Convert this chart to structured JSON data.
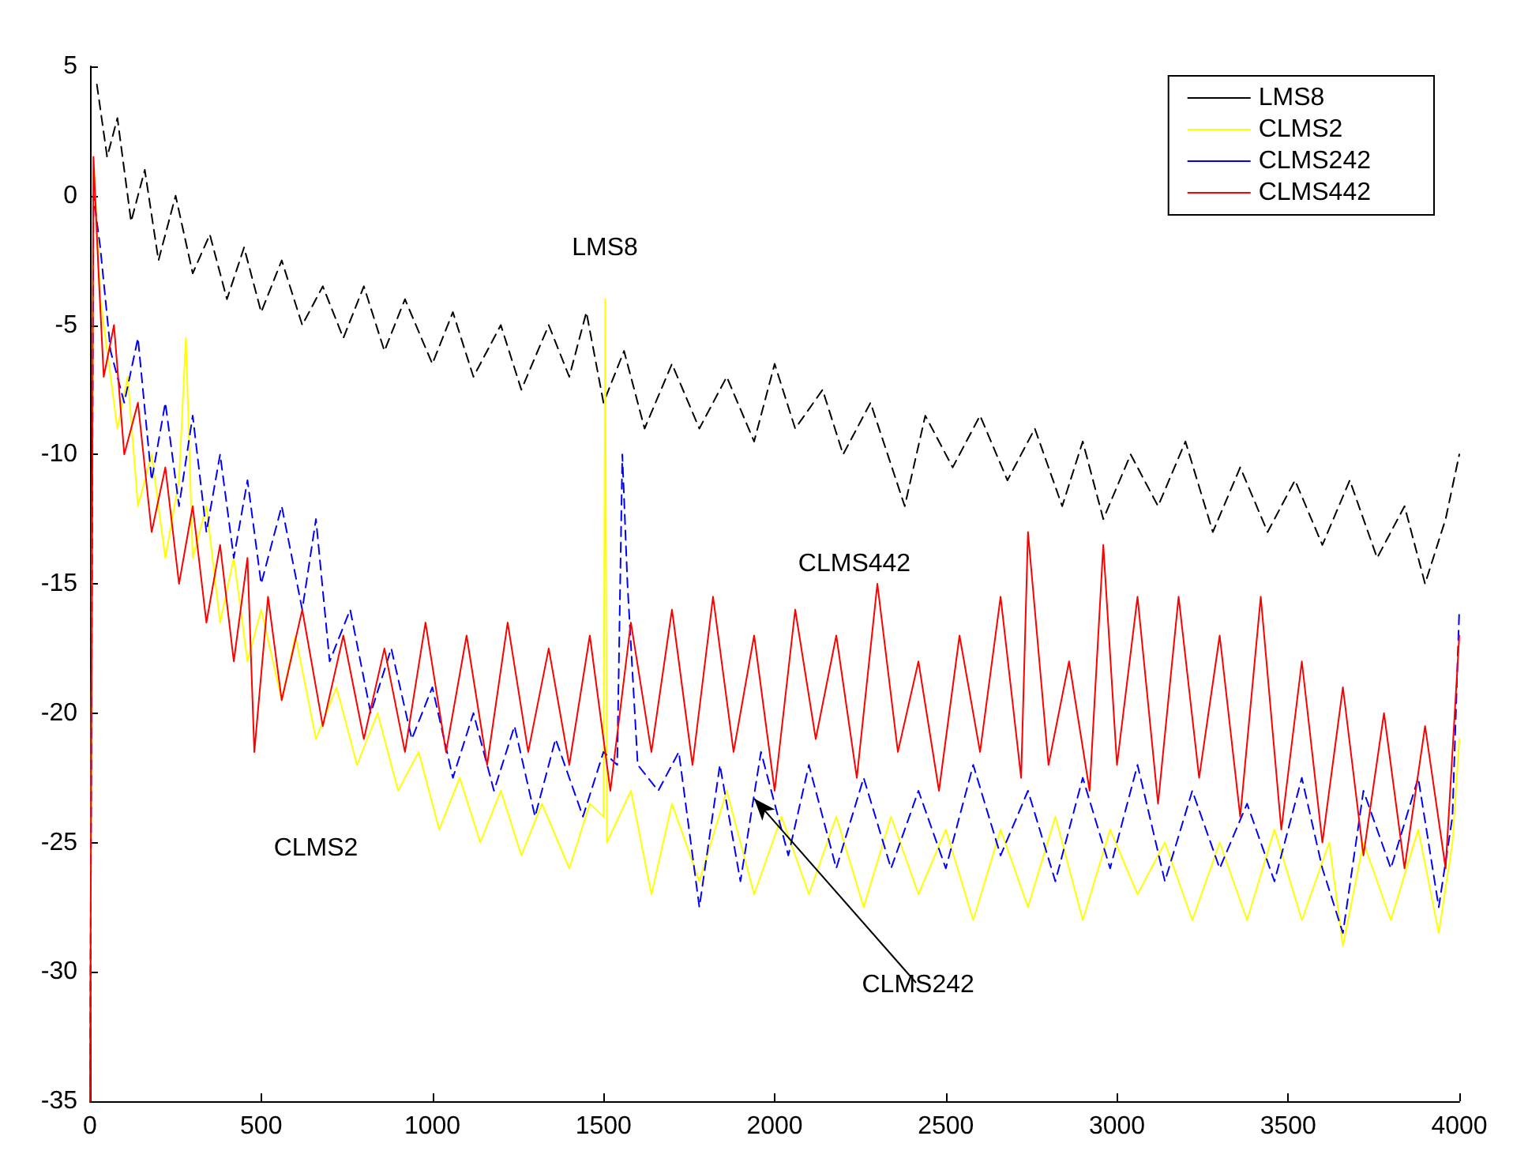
{
  "chart_data": {
    "type": "line",
    "xlim": [
      0,
      4000
    ],
    "xticks": [
      0,
      500,
      1000,
      1500,
      2000,
      2500,
      3000,
      3500,
      4000
    ],
    "ylim": [
      -35,
      5
    ],
    "yticks": [
      -35,
      -30,
      -25,
      -20,
      -15,
      -10,
      -5,
      0,
      5
    ],
    "grid": false,
    "legend": "top right",
    "marker": "none",
    "annotations": [
      "LMS8",
      "CLMS442",
      "CLMS2",
      {
        "text": "CLMS242",
        "x": 1940,
        "y": -23.3
      }
    ],
    "series": [
      {
        "name": "LMS8",
        "color": "#000000",
        "line_style": "dashed",
        "x": [
          20,
          50,
          80,
          120,
          160,
          200,
          250,
          300,
          350,
          400,
          450,
          500,
          560,
          620,
          680,
          740,
          800,
          860,
          920,
          1000,
          1060,
          1120,
          1200,
          1260,
          1340,
          1400,
          1450,
          1500,
          1560,
          1620,
          1700,
          1780,
          1860,
          1940,
          2000,
          2060,
          2140,
          2200,
          2280,
          2380,
          2440,
          2520,
          2600,
          2680,
          2760,
          2840,
          2900,
          2960,
          3040,
          3120,
          3200,
          3280,
          3360,
          3440,
          3520,
          3600,
          3680,
          3760,
          3840,
          3900,
          3960,
          4000
        ],
        "values": [
          4.3,
          1.5,
          3,
          -1,
          1,
          -2.5,
          0,
          -3,
          -1.5,
          -4,
          -2,
          -4.5,
          -2.5,
          -5,
          -3.5,
          -5.5,
          -3.5,
          -6,
          -4,
          -6.5,
          -4.5,
          -7,
          -5,
          -7.5,
          -5,
          -7,
          -4.5,
          -8,
          -6,
          -9,
          -6.5,
          -9,
          -7,
          -9.5,
          -6.5,
          -9,
          -7.5,
          -10,
          -8,
          -12,
          -8.5,
          -10.5,
          -8.5,
          -11,
          -9,
          -12,
          -9.5,
          -12.5,
          -10,
          -12,
          -9.5,
          -13,
          -10.5,
          -13,
          -11,
          -13.5,
          -11,
          -14,
          -12,
          -15,
          -12.5,
          -10
        ]
      },
      {
        "name": "CLMS2",
        "color": "#ffff00",
        "line_style": "solid",
        "x": [
          0,
          10,
          30,
          50,
          80,
          110,
          140,
          180,
          220,
          260,
          280,
          300,
          340,
          380,
          420,
          460,
          500,
          560,
          600,
          660,
          720,
          780,
          840,
          900,
          960,
          1020,
          1080,
          1140,
          1200,
          1260,
          1320,
          1400,
          1460,
          1500,
          1505,
          1510,
          1580,
          1640,
          1700,
          1780,
          1860,
          1940,
          2020,
          2100,
          2180,
          2260,
          2340,
          2420,
          2500,
          2580,
          2660,
          2740,
          2820,
          2900,
          2980,
          3060,
          3140,
          3220,
          3300,
          3380,
          3460,
          3540,
          3620,
          3660,
          3720,
          3800,
          3880,
          3940,
          3980,
          4000
        ],
        "values": [
          -35,
          1.5,
          -4,
          -6,
          -9,
          -7,
          -12,
          -10,
          -14,
          -11,
          -5.5,
          -14,
          -12,
          -16.5,
          -14,
          -18,
          -16,
          -19.5,
          -17,
          -21,
          -19,
          -22,
          -20,
          -23,
          -21.5,
          -24.5,
          -22.5,
          -25,
          -23,
          -25.5,
          -23.5,
          -26,
          -23.5,
          -24,
          -4,
          -25,
          -23,
          -27,
          -23.5,
          -26.5,
          -23,
          -27,
          -24,
          -27,
          -24,
          -27.5,
          -24,
          -27,
          -24.5,
          -28,
          -24.5,
          -27.5,
          -24,
          -28,
          -24.5,
          -27,
          -25,
          -28,
          -25,
          -28,
          -24.5,
          -28,
          -25,
          -29,
          -25,
          -28,
          -24.5,
          -28.5,
          -25,
          -21
        ]
      },
      {
        "name": "CLMS242",
        "color": "#0000ff",
        "line_style": "dashed",
        "x": [
          0,
          10,
          30,
          60,
          100,
          140,
          180,
          220,
          260,
          300,
          340,
          380,
          420,
          460,
          500,
          560,
          620,
          660,
          700,
          760,
          820,
          880,
          940,
          1000,
          1060,
          1120,
          1180,
          1240,
          1300,
          1360,
          1440,
          1500,
          1540,
          1555,
          1570,
          1600,
          1660,
          1720,
          1780,
          1840,
          1900,
          1960,
          2040,
          2100,
          2180,
          2260,
          2340,
          2420,
          2500,
          2580,
          2660,
          2740,
          2820,
          2900,
          2980,
          3060,
          3140,
          3220,
          3300,
          3380,
          3460,
          3540,
          3600,
          3660,
          3720,
          3800,
          3880,
          3940,
          3980,
          4000
        ],
        "values": [
          -35,
          0,
          -2,
          -6,
          -8,
          -5.5,
          -11,
          -8,
          -12,
          -8.5,
          -13,
          -10,
          -14,
          -11,
          -15,
          -12,
          -16,
          -12.5,
          -18,
          -16,
          -20,
          -17.5,
          -21,
          -19,
          -22.5,
          -20,
          -23,
          -20.5,
          -24,
          -21,
          -24,
          -21.5,
          -22,
          -10,
          -15,
          -22,
          -23,
          -21.5,
          -27.5,
          -22,
          -26.5,
          -21.5,
          -25.5,
          -22,
          -26,
          -22.5,
          -26,
          -23,
          -26,
          -22,
          -25.5,
          -23,
          -26.5,
          -22.5,
          -26,
          -22,
          -26.5,
          -23,
          -26,
          -23.5,
          -26.5,
          -22.5,
          -26,
          -28.5,
          -23,
          -26,
          -22.5,
          -27.5,
          -24,
          -16
        ]
      },
      {
        "name": "CLMS442",
        "color": "#ff0000",
        "line_style": "solid",
        "x": [
          0,
          10,
          25,
          40,
          70,
          100,
          140,
          180,
          220,
          260,
          300,
          340,
          380,
          420,
          460,
          480,
          520,
          560,
          620,
          680,
          740,
          800,
          860,
          920,
          980,
          1040,
          1100,
          1160,
          1220,
          1280,
          1340,
          1400,
          1460,
          1520,
          1580,
          1640,
          1700,
          1760,
          1820,
          1880,
          1940,
          2000,
          2060,
          2120,
          2180,
          2240,
          2300,
          2360,
          2420,
          2480,
          2540,
          2600,
          2660,
          2720,
          2740,
          2800,
          2860,
          2920,
          2960,
          3000,
          3060,
          3120,
          3180,
          3240,
          3300,
          3360,
          3420,
          3480,
          3540,
          3600,
          3660,
          3720,
          3780,
          3840,
          3900,
          3960,
          4000
        ],
        "values": [
          -35,
          1.5,
          -3,
          -7,
          -5,
          -10,
          -8,
          -13,
          -10.5,
          -15,
          -12,
          -16.5,
          -13.5,
          -18,
          -14,
          -21.5,
          -15.5,
          -19.5,
          -16,
          -20.5,
          -17,
          -21,
          -17.5,
          -21.5,
          -16.5,
          -21.5,
          -17,
          -22,
          -16.5,
          -21.5,
          -17.5,
          -22,
          -17,
          -23,
          -16.5,
          -21.5,
          -16,
          -22,
          -15.5,
          -21.5,
          -17,
          -23,
          -16,
          -21,
          -17,
          -22.5,
          -15,
          -21.5,
          -18,
          -23,
          -17,
          -21.5,
          -15.5,
          -22.5,
          -13,
          -22,
          -18,
          -23,
          -13.5,
          -22,
          -15.5,
          -23.5,
          -15.5,
          -22.5,
          -17,
          -24,
          -15.5,
          -24.5,
          -18,
          -25,
          -19,
          -25.5,
          -20,
          -26,
          -20.5,
          -26,
          -17
        ]
      }
    ]
  }
}
